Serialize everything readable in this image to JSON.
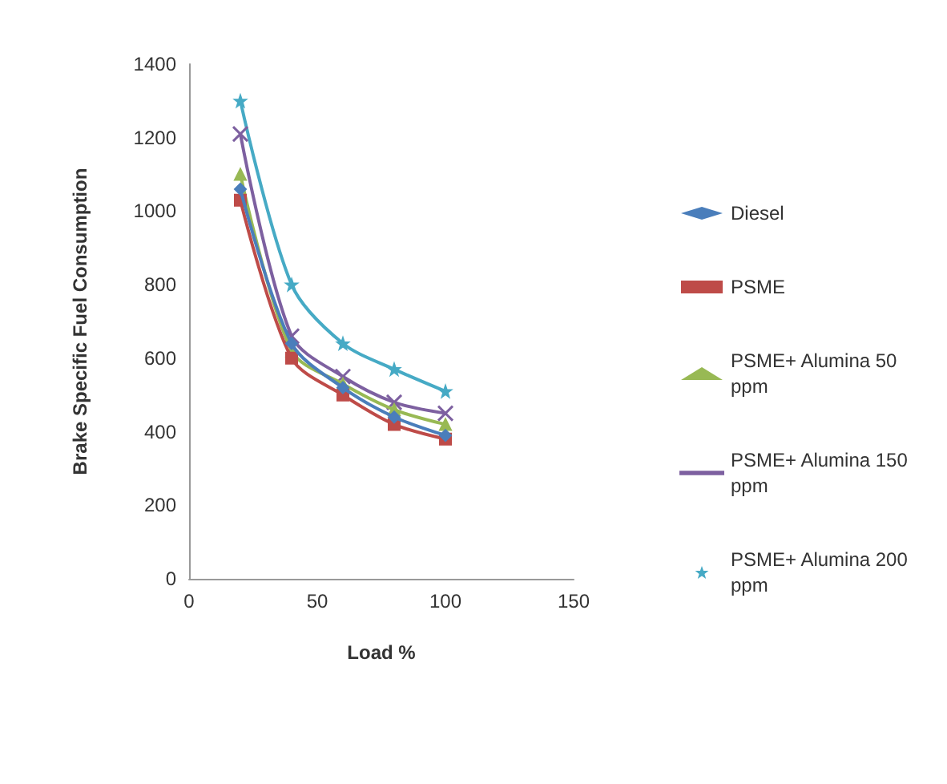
{
  "chart_data": {
    "type": "line",
    "xlabel": "Load %",
    "ylabel": "Brake Specific Fuel Consumption",
    "xlim": [
      0,
      150
    ],
    "xticks": [
      0,
      50,
      100,
      150
    ],
    "ylim": [
      0,
      1400
    ],
    "yticks": [
      0,
      200,
      400,
      600,
      800,
      1000,
      1200,
      1400
    ],
    "grid": false,
    "legend": "right",
    "x": [
      20,
      40,
      60,
      80,
      100
    ],
    "series": [
      {
        "name": "Diesel",
        "color": "#4a7ebb",
        "marker": "diamond",
        "values": [
          1060,
          640,
          520,
          440,
          390
        ]
      },
      {
        "name": "PSME",
        "color": "#be4b48",
        "marker": "square",
        "values": [
          1030,
          600,
          500,
          420,
          380
        ]
      },
      {
        "name": "PSME+ Alumina 50 ppm",
        "color": "#98b954",
        "marker": "triangle",
        "values": [
          1100,
          620,
          530,
          460,
          420
        ]
      },
      {
        "name": "PSME+ Alumina 150 ppm",
        "color": "#7d60a0",
        "marker": "cross",
        "values": [
          1210,
          660,
          550,
          480,
          450
        ]
      },
      {
        "name": "PSME+ Alumina 200 ppm",
        "color": "#46aac5",
        "marker": "star",
        "values": [
          1300,
          800,
          640,
          570,
          510
        ]
      }
    ]
  }
}
